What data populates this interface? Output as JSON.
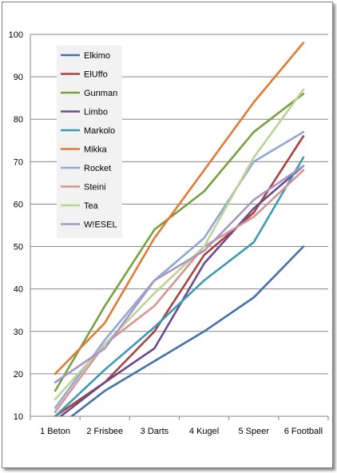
{
  "chart_data": {
    "type": "line",
    "categories": [
      "1 Beton",
      "2 Frisbee",
      "3 Darts",
      "4 Kugel",
      "5 Speer",
      "6 Football"
    ],
    "ylim": [
      10,
      100
    ],
    "yticks": [
      10,
      20,
      30,
      40,
      50,
      60,
      70,
      80,
      90,
      100
    ],
    "grid": "horizontal",
    "legend_position": "top-left",
    "series": [
      {
        "name": "Elkimo",
        "color": "#4472a8",
        "values": [
          7,
          16,
          23,
          30,
          38,
          50
        ]
      },
      {
        "name": "ElUffo",
        "color": "#a84442",
        "values": [
          10,
          18,
          30,
          48,
          58,
          76
        ]
      },
      {
        "name": "Gunman",
        "color": "#77a040",
        "values": [
          16,
          36,
          54,
          63,
          77,
          86
        ]
      },
      {
        "name": "Limbo",
        "color": "#6a4c8c",
        "values": [
          9,
          18,
          26,
          46,
          59,
          69
        ]
      },
      {
        "name": "Markolo",
        "color": "#3f9ab2",
        "values": [
          10,
          21,
          31,
          42,
          51,
          71
        ]
      },
      {
        "name": "Mikka",
        "color": "#e07b35",
        "values": [
          20,
          32,
          52,
          68,
          84,
          98
        ]
      },
      {
        "name": "Rocket",
        "color": "#8fa8d4",
        "values": [
          12,
          28,
          42,
          52,
          70,
          77
        ]
      },
      {
        "name": "Steini",
        "color": "#d59594",
        "values": [
          11,
          27,
          36,
          50,
          57,
          68
        ]
      },
      {
        "name": "Tea",
        "color": "#bdd396",
        "values": [
          14,
          27,
          39,
          50,
          71,
          87
        ]
      },
      {
        "name": "W!ESEL",
        "color": "#a896c5",
        "values": [
          18,
          26,
          42,
          49,
          61,
          69
        ]
      }
    ]
  }
}
